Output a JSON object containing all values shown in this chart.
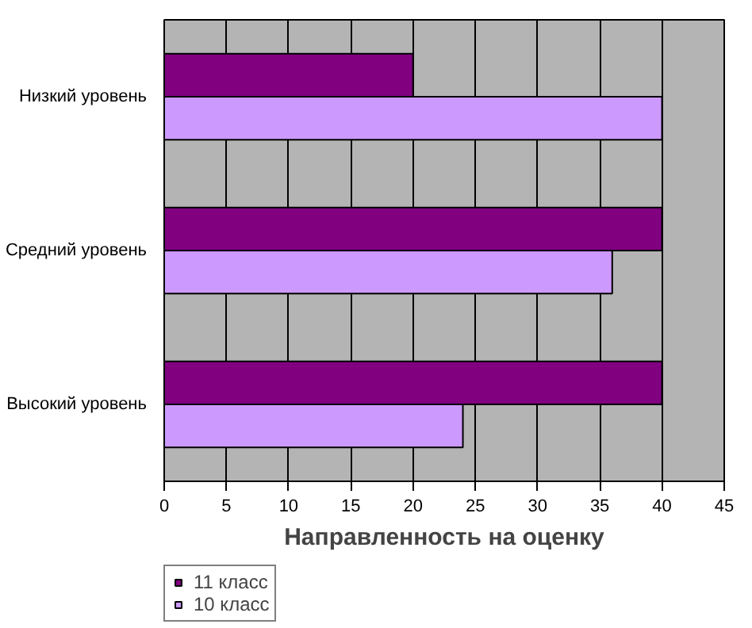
{
  "chart_data": {
    "type": "bar",
    "orientation": "horizontal",
    "xlabel": "Направленность на оценку",
    "categories": [
      "Низкий уровень",
      "Средний уровень",
      "Высокий уровень"
    ],
    "series": [
      {
        "name": "11 класс",
        "color": "#800080",
        "values": [
          20,
          40,
          40
        ]
      },
      {
        "name": "10 класс",
        "color": "#cc99ff",
        "values": [
          40,
          36,
          24
        ]
      }
    ],
    "xlim": [
      0,
      45
    ],
    "xticks": [
      0,
      5,
      10,
      15,
      20,
      25,
      30,
      35,
      40,
      45
    ],
    "grid": "x",
    "legend": "bottom left"
  }
}
